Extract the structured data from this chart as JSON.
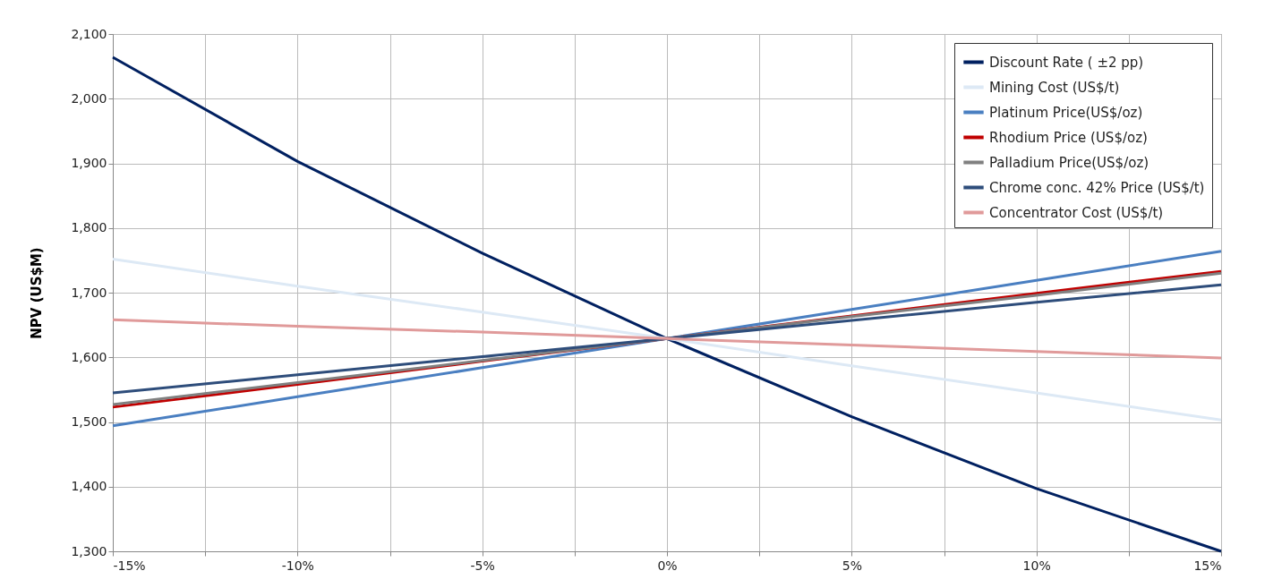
{
  "chart_data": {
    "type": "line",
    "ylabel": "NPV (US$M)",
    "x": [
      -15,
      -10,
      -5,
      0,
      5,
      10,
      15
    ],
    "xlim": [
      -15,
      15
    ],
    "xticks": [
      {
        "value": -15,
        "label": "-15%"
      },
      {
        "value": -12.5,
        "label": null
      },
      {
        "value": -10,
        "label": "-10%"
      },
      {
        "value": -7.5,
        "label": null
      },
      {
        "value": -5,
        "label": "-5%"
      },
      {
        "value": -2.5,
        "label": null
      },
      {
        "value": 0,
        "label": "0%"
      },
      {
        "value": 2.5,
        "label": null
      },
      {
        "value": 5,
        "label": "5%"
      },
      {
        "value": 7.5,
        "label": null
      },
      {
        "value": 10,
        "label": "10%"
      },
      {
        "value": 12.5,
        "label": null
      },
      {
        "value": 15,
        "label": "15%"
      }
    ],
    "ylim": [
      1300,
      2100
    ],
    "yticks": [
      {
        "value": 1300,
        "label": "1,300"
      },
      {
        "value": 1400,
        "label": "1,400"
      },
      {
        "value": 1500,
        "label": "1,500"
      },
      {
        "value": 1600,
        "label": "1,600"
      },
      {
        "value": 1700,
        "label": "1,700"
      },
      {
        "value": 1800,
        "label": "1,800"
      },
      {
        "value": 1900,
        "label": "1,900"
      },
      {
        "value": 2000,
        "label": "2,000"
      },
      {
        "value": 2100,
        "label": "2,100"
      }
    ],
    "grid": true,
    "legend": "top right",
    "marker": "none",
    "line_style": "solid",
    "series": [
      {
        "name": "Discount Rate ( ±2 pp)",
        "color": "#002060",
        "values": [
          2064,
          1903,
          1761,
          1629,
          1508,
          1397,
          1300
        ]
      },
      {
        "name": "Mining Cost (US$/t)",
        "color": "#dde9f5",
        "values": [
          1752,
          1710,
          1670,
          1629,
          1587,
          1545,
          1503
        ]
      },
      {
        "name": "Platinum Price(US$/oz)",
        "color": "#4a7fc1",
        "values": [
          1494,
          1539,
          1584,
          1629,
          1674,
          1719,
          1764
        ]
      },
      {
        "name": "Rhodium Price (US$/oz)",
        "color": "#c00000",
        "values": [
          1523,
          1558,
          1594,
          1629,
          1664,
          1699,
          1733
        ]
      },
      {
        "name": "Palladium Price(US$/oz)",
        "color": "#808080",
        "values": [
          1527,
          1561,
          1595,
          1629,
          1663,
          1696,
          1730
        ]
      },
      {
        "name": "Chrome conc. 42% Price (US$/t)",
        "color": "#2e4d7b",
        "values": [
          1545,
          1573,
          1601,
          1629,
          1657,
          1685,
          1712
        ]
      },
      {
        "name": "Concentrator Cost (US$/t)",
        "color": "#e09a9a",
        "values": [
          1658,
          1648,
          1639,
          1629,
          1619,
          1609,
          1599
        ]
      }
    ]
  }
}
